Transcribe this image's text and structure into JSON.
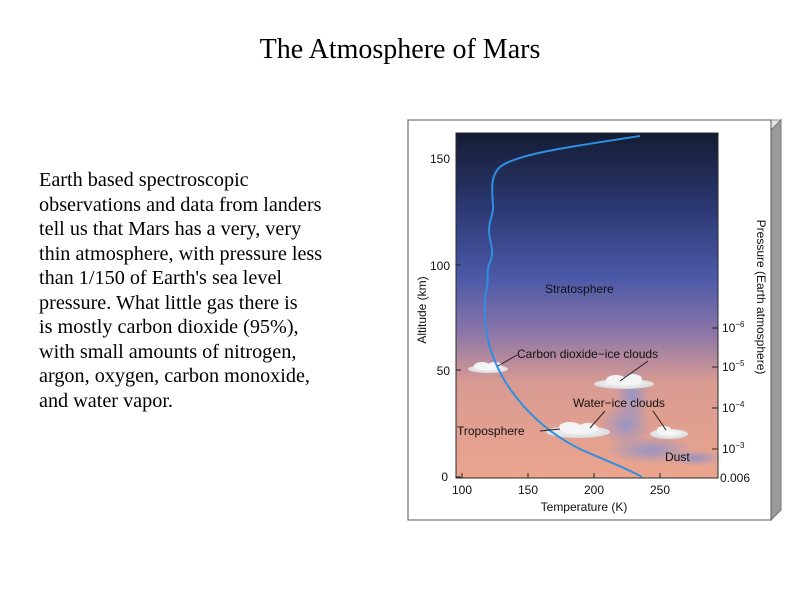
{
  "title": "The Atmosphere of Mars",
  "body_lines": [
    "Earth based spectroscopic",
    "observations and data from landers",
    "tell us that Mars has a very, very",
    "thin atmosphere, with pressure less",
    "than 1/150 of Earth's sea level",
    "pressure.  What little gas there is",
    "is mostly carbon dioxide (95%),",
    "with small amounts of nitrogen,",
    "argon, oxygen, carbon monoxide,",
    "and water vapor."
  ],
  "diagram": {
    "x_axis_label": "Temperature (K)",
    "y_axis_label": "Altitude (km)",
    "right_axis_label": "Pressure (Earth atmosphere)",
    "x_ticks": [
      "100",
      "150",
      "200",
      "250"
    ],
    "y_ticks": [
      "0",
      "50",
      "100",
      "150"
    ],
    "pressure_ticks": [
      {
        "base": "10",
        "exp": "−6"
      },
      {
        "base": "10",
        "exp": "−5"
      },
      {
        "base": "10",
        "exp": "−4"
      },
      {
        "base": "10",
        "exp": "−3"
      },
      {
        "base": "0.006",
        "exp": ""
      }
    ],
    "labels": {
      "stratosphere": "Stratosphere",
      "co2_clouds": "Carbon dioxide−ice clouds",
      "water_clouds": "Water−ice clouds",
      "troposphere": "Troposphere",
      "dust": "Dust"
    },
    "colors": {
      "sky_top": "#141c33",
      "sky_mid": "#4b59a8",
      "sky_low": "#c98a88",
      "ground": "#eba58e",
      "profile_curve": "#2e8fe0",
      "frame": "#c9c9c9"
    }
  }
}
